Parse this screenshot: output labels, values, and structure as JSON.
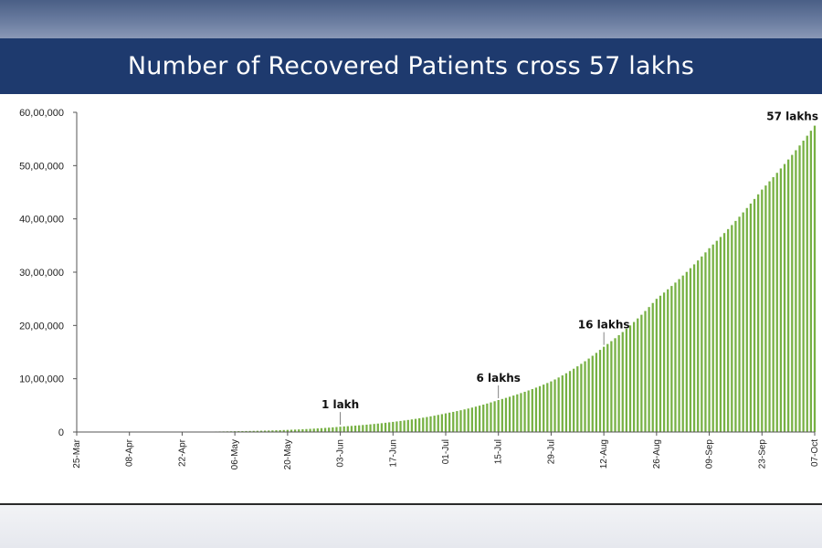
{
  "header": {
    "title": "Number of Recovered Patients cross 57 lakhs"
  },
  "colors": {
    "title_band": "#1e3a6e",
    "bar": "#77b144"
  },
  "chart_data": {
    "type": "bar",
    "title": "Number of Recovered Patients cross 57 lakhs",
    "xlabel": "",
    "ylabel": "",
    "x_start": "2020-03-25",
    "x_end": "2020-10-07",
    "x_tick_labels": [
      "25-Mar",
      "08-Apr",
      "22-Apr",
      "06-May",
      "20-May",
      "03-Jun",
      "17-Jun",
      "01-Jul",
      "15-Jul",
      "29-Jul",
      "12-Aug",
      "26-Aug",
      "09-Sep",
      "23-Sep",
      "07-Oct"
    ],
    "y_ticks": [
      0,
      1000000,
      2000000,
      3000000,
      4000000,
      5000000,
      6000000
    ],
    "y_tick_labels": [
      "0",
      "10,00,000",
      "20,00,000",
      "30,00,000",
      "40,00,000",
      "50,00,000",
      "60,00,000"
    ],
    "ylim": [
      0,
      6000000
    ],
    "grid": false,
    "legend": "none",
    "series": [
      {
        "key_points": [
          {
            "date": "2020-03-25",
            "value": 0
          },
          {
            "date": "2020-04-15",
            "value": 2000
          },
          {
            "date": "2020-05-06",
            "value": 15000
          },
          {
            "date": "2020-05-20",
            "value": 40000
          },
          {
            "date": "2020-06-03",
            "value": 100000
          },
          {
            "date": "2020-06-17",
            "value": 190000
          },
          {
            "date": "2020-07-01",
            "value": 350000
          },
          {
            "date": "2020-07-15",
            "value": 600000
          },
          {
            "date": "2020-07-29",
            "value": 950000
          },
          {
            "date": "2020-08-12",
            "value": 1600000
          },
          {
            "date": "2020-08-26",
            "value": 2500000
          },
          {
            "date": "2020-09-09",
            "value": 3450000
          },
          {
            "date": "2020-09-23",
            "value": 4550000
          },
          {
            "date": "2020-10-07",
            "value": 5750000
          }
        ]
      }
    ],
    "annotations": [
      {
        "text": "1 lakh",
        "date": "2020-06-03",
        "value": 100000
      },
      {
        "text": "6 lakhs",
        "date": "2020-07-15",
        "value": 600000
      },
      {
        "text": "16 lakhs",
        "date": "2020-08-12",
        "value": 1600000
      },
      {
        "text": "57 lakhs",
        "date": "2020-10-07",
        "value": 5750000
      }
    ]
  }
}
